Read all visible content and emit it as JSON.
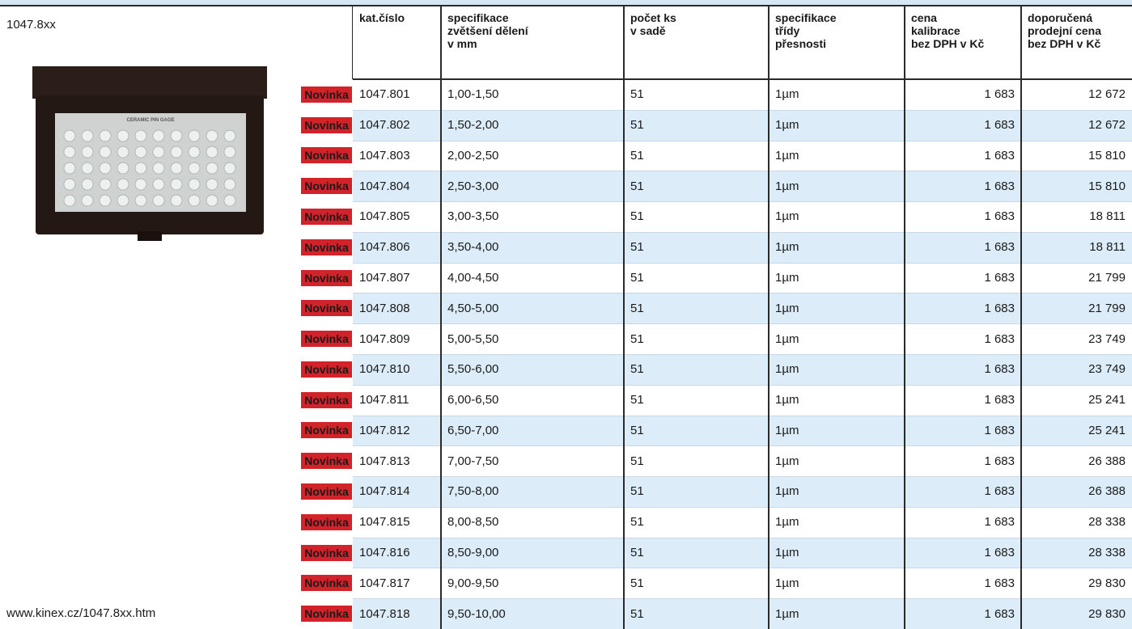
{
  "product": {
    "code": "1047.8xx",
    "url": "www.kinex.cz/1047.8xx.htm",
    "image_label": "CERAMIC PIN GAGE"
  },
  "table": {
    "badge": "Novinka",
    "headers": [
      "kat.číslo",
      "specifikace\nzvětšení dělení\nv mm",
      "počet ks\nv sadě",
      "specifikace\ntřídy\npřesnosti",
      "cena\nkalibrace\nbez DPH v Kč",
      "doporučená\nprodejní cena\nbez DPH v Kč"
    ],
    "rows": [
      [
        "1047.801",
        "1,00-1,50",
        "51",
        "1µm",
        "1 683",
        "12 672"
      ],
      [
        "1047.802",
        "1,50-2,00",
        "51",
        "1µm",
        "1 683",
        "12 672"
      ],
      [
        "1047.803",
        "2,00-2,50",
        "51",
        "1µm",
        "1 683",
        "15 810"
      ],
      [
        "1047.804",
        "2,50-3,00",
        "51",
        "1µm",
        "1 683",
        "15 810"
      ],
      [
        "1047.805",
        "3,00-3,50",
        "51",
        "1µm",
        "1 683",
        "18 811"
      ],
      [
        "1047.806",
        "3,50-4,00",
        "51",
        "1µm",
        "1 683",
        "18 811"
      ],
      [
        "1047.807",
        "4,00-4,50",
        "51",
        "1µm",
        "1 683",
        "21 799"
      ],
      [
        "1047.808",
        "4,50-5,00",
        "51",
        "1µm",
        "1 683",
        "21 799"
      ],
      [
        "1047.809",
        "5,00-5,50",
        "51",
        "1µm",
        "1 683",
        "23 749"
      ],
      [
        "1047.810",
        "5,50-6,00",
        "51",
        "1µm",
        "1 683",
        "23 749"
      ],
      [
        "1047.811",
        "6,00-6,50",
        "51",
        "1µm",
        "1 683",
        "25 241"
      ],
      [
        "1047.812",
        "6,50-7,00",
        "51",
        "1µm",
        "1 683",
        "25 241"
      ],
      [
        "1047.813",
        "7,00-7,50",
        "51",
        "1µm",
        "1 683",
        "26 388"
      ],
      [
        "1047.814",
        "7,50-8,00",
        "51",
        "1µm",
        "1 683",
        "26 388"
      ],
      [
        "1047.815",
        "8,00-8,50",
        "51",
        "1µm",
        "1 683",
        "28 338"
      ],
      [
        "1047.816",
        "8,50-9,00",
        "51",
        "1µm",
        "1 683",
        "28 338"
      ],
      [
        "1047.817",
        "9,00-9,50",
        "51",
        "1µm",
        "1 683",
        "29 830"
      ],
      [
        "1047.818",
        "9,50-10,00",
        "51",
        "1µm",
        "1 683",
        "29 830"
      ]
    ]
  }
}
